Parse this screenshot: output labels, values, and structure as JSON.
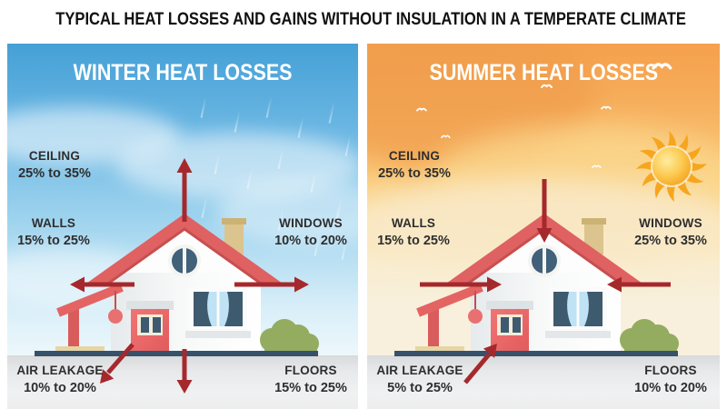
{
  "title": "TYPICAL HEAT LOSSES AND GAINS WITHOUT INSULATION IN A TEMPERATE CLIMATE",
  "panels": {
    "winter": {
      "title": "WINTER HEAT LOSSES",
      "weather": "rain clouds",
      "labels": {
        "ceiling": {
          "name": "CEILING",
          "value": "25% to 35%",
          "flow": "arrow-out-up"
        },
        "walls": {
          "name": "WALLS",
          "value": "15% to 25%",
          "flow": "arrow-out-left"
        },
        "windows": {
          "name": "WINDOWS",
          "value": "10% to 20%",
          "flow": "arrow-out-right"
        },
        "air_leakage": {
          "name": "AIR LEAKAGE",
          "value": "10% to 20%",
          "flow": "arrow-out-down-left"
        },
        "floors": {
          "name": "FLOORS",
          "value": "15% to 25%",
          "flow": "arrow-out-down"
        }
      }
    },
    "summer": {
      "title": "SUMMER HEAT LOSSES",
      "weather": "sun and birds",
      "labels": {
        "ceiling": {
          "name": "CEILING",
          "value": "25% to 35%",
          "flow": "arrow-in-down"
        },
        "walls": {
          "name": "WALLS",
          "value": "15% to 25%",
          "flow": "arrow-in-right"
        },
        "windows": {
          "name": "WINDOWS",
          "value": "25% to 35%",
          "flow": "arrow-in-left"
        },
        "air_leakage": {
          "name": "AIR LEAKAGE",
          "value": "5% to 25%",
          "flow": "arrow-in-up-right"
        },
        "floors": {
          "name": "FLOORS",
          "value": "10% to 20%",
          "flow": "none"
        }
      }
    }
  },
  "icons": {
    "sun-icon": "radiant sun with wavy rays",
    "bird-icon": "white gull silhouette",
    "rain-drop-icon": "diagonal rain streak",
    "heat-arrow-icon": "dark red heat flow arrow",
    "house-icon": "house with red roof, round attic window, curtained window, red entry annex, pergola and bush"
  },
  "colors": {
    "arrow": "#a5292c",
    "roof": "#e06161",
    "winter_sky_top": "#45a0d6",
    "summer_sky_top": "#f5a04c",
    "sun": "#f6a61e",
    "ground": "#e7e9ea",
    "title_text": "#111111",
    "panel_title_text": "#ffffff"
  }
}
